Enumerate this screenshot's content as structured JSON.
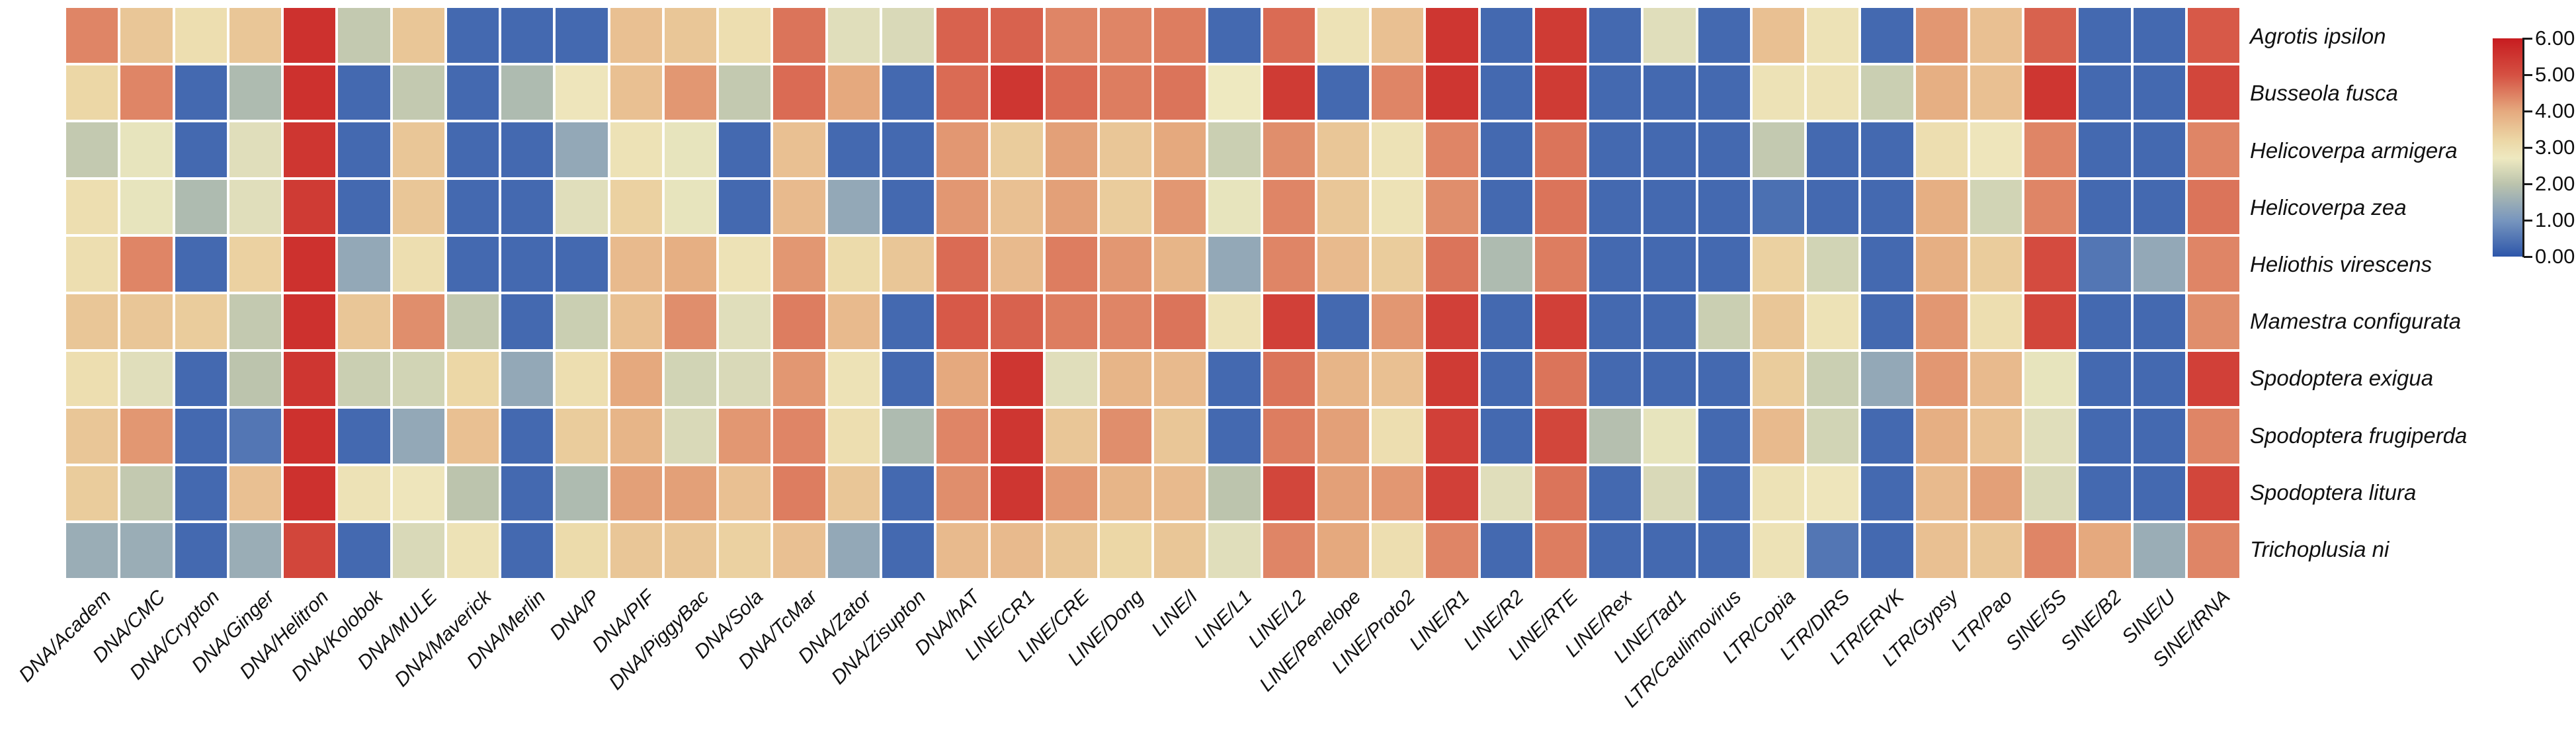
{
  "chart_data": {
    "type": "heatmap",
    "title": "",
    "rows": [
      "Agrotis ipsilon",
      "Busseola fusca",
      "Helicoverpa armigera",
      "Helicoverpa zea",
      "Heliothis virescens",
      "Mamestra configurata",
      "Spodoptera exigua",
      "Spodoptera frugiperda",
      "Spodoptera litura",
      "Trichoplusia ni"
    ],
    "columns": [
      "DNA/Academ",
      "DNA/CMC",
      "DNA/Crypton",
      "DNA/Ginger",
      "DNA/Helitron",
      "DNA/Kolobok",
      "DNA/MULE",
      "DNA/Maverick",
      "DNA/Merlin",
      "DNA/P",
      "DNA/PIF",
      "DNA/PiggyBac",
      "DNA/Sola",
      "DNA/TcMar",
      "DNA/Zator",
      "DNA/Zisupton",
      "DNA/hAT",
      "LINE/CR1",
      "LINE/CRE",
      "LINE/Dong",
      "LINE/I",
      "LINE/L1",
      "LINE/L2",
      "LINE/Penelope",
      "LINE/Proto2",
      "LINE/R1",
      "LINE/R2",
      "LINE/RTE",
      "LINE/Rex",
      "LINE/Tad1",
      "LTR/Caulimovirus",
      "LTR/Copia",
      "LTR/DIRS",
      "LTR/ERVK",
      "LTR/Gypsy",
      "LTR/Pao",
      "SINE/5S",
      "SINE/B2",
      "SINE/U",
      "SINE/tRNA"
    ],
    "values": [
      [
        4.4,
        3.5,
        3.0,
        3.5,
        5.6,
        2.1,
        3.5,
        0.3,
        0.3,
        0.3,
        3.6,
        3.5,
        3.0,
        4.6,
        2.5,
        2.4,
        4.8,
        4.8,
        4.4,
        4.4,
        4.5,
        0.3,
        4.7,
        2.9,
        3.6,
        5.5,
        0.3,
        5.4,
        0.3,
        2.5,
        0.3,
        3.6,
        2.9,
        0.3,
        4.2,
        3.6,
        4.8,
        0.3,
        0.3,
        4.9
      ],
      [
        3.2,
        4.4,
        0.3,
        1.8,
        5.6,
        0.3,
        2.1,
        0.3,
        1.8,
        2.8,
        3.6,
        4.2,
        2.1,
        4.7,
        4.0,
        0.3,
        4.7,
        5.5,
        4.7,
        4.5,
        4.6,
        2.7,
        5.4,
        0.3,
        4.4,
        5.5,
        0.3,
        5.4,
        0.3,
        0.3,
        0.3,
        2.9,
        2.9,
        2.2,
        3.9,
        3.6,
        5.5,
        0.3,
        0.3,
        5.2
      ],
      [
        2.1,
        2.6,
        0.3,
        2.5,
        5.5,
        0.3,
        3.5,
        0.3,
        0.3,
        1.4,
        2.9,
        2.6,
        0.3,
        3.6,
        0.3,
        0.3,
        4.2,
        3.4,
        4.1,
        3.5,
        4.0,
        2.2,
        4.3,
        3.5,
        2.9,
        4.4,
        0.3,
        4.6,
        0.3,
        0.3,
        0.3,
        2.1,
        0.3,
        0.3,
        3.0,
        2.8,
        4.4,
        0.3,
        0.3,
        4.4
      ],
      [
        3.0,
        2.6,
        1.8,
        2.5,
        5.4,
        0.3,
        3.5,
        0.3,
        0.3,
        2.5,
        3.3,
        2.6,
        0.3,
        3.7,
        1.4,
        0.3,
        4.2,
        3.6,
        4.1,
        3.4,
        4.2,
        2.6,
        4.4,
        3.5,
        2.9,
        4.3,
        0.3,
        4.6,
        0.3,
        0.3,
        0.3,
        0.4,
        0.3,
        0.3,
        3.9,
        2.3,
        4.4,
        0.3,
        0.3,
        4.6
      ],
      [
        3.0,
        4.4,
        0.3,
        3.3,
        5.6,
        1.4,
        3.0,
        0.3,
        0.3,
        0.3,
        3.7,
        3.9,
        2.9,
        4.2,
        3.1,
        3.5,
        4.7,
        3.7,
        4.5,
        4.2,
        3.8,
        1.4,
        4.4,
        3.7,
        3.4,
        4.6,
        1.8,
        4.5,
        0.3,
        0.3,
        0.3,
        3.3,
        2.3,
        0.3,
        3.9,
        3.4,
        5.1,
        0.5,
        1.4,
        4.4
      ],
      [
        3.5,
        3.5,
        3.4,
        2.1,
        5.6,
        3.5,
        4.3,
        2.1,
        0.3,
        2.2,
        3.6,
        4.3,
        2.5,
        4.5,
        3.7,
        0.3,
        4.9,
        4.8,
        4.5,
        4.4,
        4.6,
        2.9,
        5.3,
        0.3,
        4.2,
        5.3,
        0.3,
        5.3,
        0.3,
        0.3,
        2.2,
        3.5,
        2.9,
        0.3,
        4.2,
        3.0,
        5.2,
        0.3,
        0.3,
        4.3
      ],
      [
        3.0,
        2.5,
        0.3,
        2.0,
        5.5,
        2.2,
        2.3,
        3.2,
        1.4,
        3.0,
        4.0,
        2.3,
        2.4,
        4.2,
        2.9,
        0.3,
        4.0,
        5.5,
        2.5,
        3.8,
        3.7,
        0.3,
        4.6,
        3.8,
        3.6,
        5.4,
        0.3,
        4.6,
        0.3,
        0.3,
        0.3,
        3.4,
        2.2,
        1.4,
        4.2,
        3.7,
        2.6,
        0.3,
        0.3,
        5.3
      ],
      [
        3.5,
        4.2,
        0.3,
        0.5,
        5.6,
        0.3,
        1.4,
        3.6,
        0.3,
        3.4,
        3.8,
        2.4,
        4.2,
        4.4,
        3.0,
        1.8,
        4.4,
        5.5,
        3.5,
        4.3,
        3.5,
        0.3,
        4.5,
        4.1,
        3.0,
        5.3,
        0.3,
        5.2,
        1.9,
        2.6,
        0.3,
        3.7,
        2.3,
        0.3,
        3.9,
        3.6,
        2.5,
        0.3,
        0.3,
        4.4
      ],
      [
        3.4,
        2.1,
        0.3,
        3.6,
        5.6,
        2.9,
        2.8,
        2.0,
        0.3,
        1.8,
        4.1,
        4.1,
        3.6,
        4.5,
        3.5,
        0.3,
        4.3,
        5.5,
        4.2,
        3.8,
        3.7,
        2.0,
        5.2,
        4.1,
        4.2,
        5.3,
        2.5,
        4.6,
        0.3,
        2.4,
        0.3,
        2.9,
        2.8,
        0.3,
        3.7,
        4.1,
        2.4,
        0.3,
        0.3,
        5.2
      ],
      [
        1.5,
        1.5,
        0.3,
        1.5,
        5.2,
        0.3,
        2.4,
        2.9,
        0.3,
        3.1,
        3.5,
        3.5,
        3.3,
        3.6,
        1.4,
        0.3,
        3.7,
        3.7,
        3.5,
        3.2,
        3.5,
        2.5,
        4.4,
        4.0,
        3.0,
        4.4,
        0.3,
        4.5,
        0.3,
        0.3,
        0.3,
        2.9,
        0.5,
        0.3,
        3.6,
        3.5,
        4.4,
        4.0,
        1.5,
        4.4
      ]
    ],
    "value_range": [
      0,
      6
    ],
    "grid_gap_color": "#ffffff",
    "legend_position": "right",
    "colorbar": {
      "tick_labels": [
        "6.00",
        "5.00",
        "4.00",
        "3.00",
        "2.00",
        "1.00",
        "0.00"
      ],
      "tick_values": [
        6,
        5,
        4,
        3,
        2,
        1,
        0
      ]
    },
    "colormap_anchors": [
      [
        0.0,
        [
          45,
          86,
          170
        ]
      ],
      [
        1.0,
        [
          120,
          150,
          190
        ]
      ],
      [
        2.0,
        [
          188,
          196,
          173
        ]
      ],
      [
        2.7,
        [
          238,
          233,
          192
        ]
      ],
      [
        3.2,
        [
          236,
          215,
          166
        ]
      ],
      [
        4.0,
        [
          229,
          169,
          126
        ]
      ],
      [
        5.0,
        [
          213,
          80,
          66
        ]
      ],
      [
        6.0,
        [
          199,
          28,
          32
        ]
      ]
    ]
  }
}
